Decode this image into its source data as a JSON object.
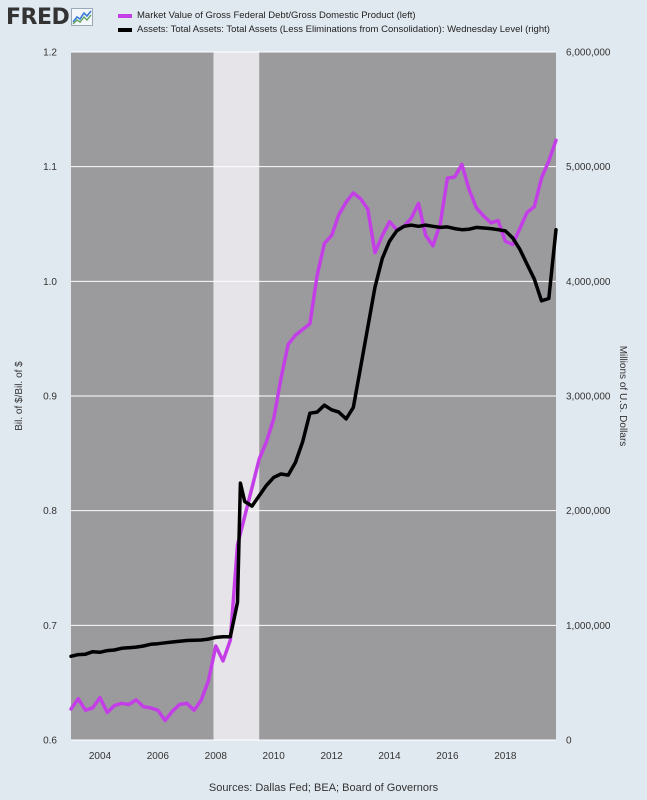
{
  "logo": {
    "text": "FRED"
  },
  "legend": [
    {
      "label": "Market Value of Gross Federal Debt/Gross Domestic Product (left)",
      "color": "#c43ee8"
    },
    {
      "label": "Assets: Total Assets: Total Assets (Less Eliminations from Consolidation): Wednesday Level (right)",
      "color": "#000000"
    }
  ],
  "sources": "Sources: Dallas Fed; BEA; Board of Governors",
  "chart_data": {
    "type": "line",
    "x_range": [
      2003.0,
      2019.75
    ],
    "x_ticks": [
      "2004",
      "2006",
      "2008",
      "2010",
      "2012",
      "2014",
      "2016",
      "2018"
    ],
    "x_tick_values": [
      2004,
      2006,
      2008,
      2010,
      2012,
      2014,
      2016,
      2018
    ],
    "left_axis": {
      "label": "Bil. of $/Bil. of $",
      "ylim": [
        0.6,
        1.2
      ],
      "ticks": [
        "0.6",
        "0.7",
        "0.8",
        "0.9",
        "1.0",
        "1.1",
        "1.2"
      ],
      "tick_values": [
        0.6,
        0.7,
        0.8,
        0.9,
        1.0,
        1.1,
        1.2
      ]
    },
    "right_axis": {
      "label": "Millions of U.S. Dollars",
      "ylim": [
        0,
        6000000
      ],
      "ticks": [
        "0",
        "1,000,000",
        "2,000,000",
        "3,000,000",
        "4,000,000",
        "5,000,000",
        "6,000,000"
      ],
      "tick_values": [
        0,
        1000000,
        2000000,
        3000000,
        4000000,
        5000000,
        6000000
      ]
    },
    "recession": {
      "start": 2007.92,
      "end": 2009.5
    },
    "grid": true,
    "series": [
      {
        "name": "Market Value of Gross Federal Debt/Gross Domestic Product (left)",
        "axis": "left",
        "color": "#c43ee8",
        "x": [
          2003.0,
          2003.25,
          2003.5,
          2003.75,
          2004.0,
          2004.25,
          2004.5,
          2004.75,
          2005.0,
          2005.25,
          2005.5,
          2005.75,
          2006.0,
          2006.25,
          2006.5,
          2006.75,
          2007.0,
          2007.25,
          2007.5,
          2007.75,
          2008.0,
          2008.25,
          2008.5,
          2008.75,
          2009.0,
          2009.25,
          2009.5,
          2009.75,
          2010.0,
          2010.25,
          2010.5,
          2010.75,
          2011.0,
          2011.25,
          2011.5,
          2011.75,
          2012.0,
          2012.25,
          2012.5,
          2012.75,
          2013.0,
          2013.25,
          2013.5,
          2013.75,
          2014.0,
          2014.25,
          2014.5,
          2014.75,
          2015.0,
          2015.25,
          2015.5,
          2015.75,
          2016.0,
          2016.25,
          2016.5,
          2016.75,
          2017.0,
          2017.25,
          2017.5,
          2017.75,
          2018.0,
          2018.25,
          2018.5,
          2018.75,
          2019.0,
          2019.25,
          2019.5,
          2019.75
        ],
        "values": [
          0.627,
          0.636,
          0.626,
          0.628,
          0.637,
          0.624,
          0.63,
          0.632,
          0.631,
          0.635,
          0.629,
          0.628,
          0.626,
          0.617,
          0.625,
          0.631,
          0.632,
          0.626,
          0.635,
          0.652,
          0.682,
          0.669,
          0.687,
          0.77,
          0.795,
          0.82,
          0.845,
          0.86,
          0.88,
          0.915,
          0.945,
          0.953,
          0.958,
          0.963,
          1.005,
          1.033,
          1.04,
          1.058,
          1.069,
          1.077,
          1.072,
          1.063,
          1.025,
          1.04,
          1.052,
          1.045,
          1.048,
          1.055,
          1.068,
          1.04,
          1.031,
          1.05,
          1.09,
          1.091,
          1.102,
          1.08,
          1.064,
          1.057,
          1.051,
          1.053,
          1.035,
          1.032,
          1.046,
          1.06,
          1.065,
          1.09,
          1.105,
          1.123
        ]
      },
      {
        "name": "Assets: Total Assets: Total Assets (Less Eliminations from Consolidation): Wednesday Level (right)",
        "axis": "right",
        "color": "#000000",
        "x": [
          2003.0,
          2003.25,
          2003.5,
          2003.75,
          2004.0,
          2004.25,
          2004.5,
          2004.75,
          2005.0,
          2005.25,
          2005.5,
          2005.75,
          2006.0,
          2006.25,
          2006.5,
          2006.75,
          2007.0,
          2007.25,
          2007.5,
          2007.75,
          2008.0,
          2008.25,
          2008.5,
          2008.75,
          2008.85,
          2009.0,
          2009.25,
          2009.5,
          2009.75,
          2010.0,
          2010.25,
          2010.5,
          2010.75,
          2011.0,
          2011.25,
          2011.5,
          2011.75,
          2012.0,
          2012.25,
          2012.5,
          2012.75,
          2013.0,
          2013.25,
          2013.5,
          2013.75,
          2014.0,
          2014.25,
          2014.5,
          2014.75,
          2015.0,
          2015.25,
          2015.5,
          2015.75,
          2016.0,
          2016.25,
          2016.5,
          2016.75,
          2017.0,
          2017.25,
          2017.5,
          2017.75,
          2018.0,
          2018.25,
          2018.5,
          2018.75,
          2019.0,
          2019.25,
          2019.5,
          2019.75
        ],
        "values": [
          730000,
          745000,
          748000,
          770000,
          765000,
          780000,
          785000,
          800000,
          805000,
          810000,
          820000,
          835000,
          840000,
          848000,
          855000,
          862000,
          868000,
          870000,
          872000,
          880000,
          895000,
          900000,
          900000,
          1200000,
          2240000,
          2080000,
          2040000,
          2130000,
          2220000,
          2290000,
          2320000,
          2310000,
          2420000,
          2600000,
          2850000,
          2860000,
          2920000,
          2880000,
          2860000,
          2800000,
          2900000,
          3250000,
          3600000,
          3950000,
          4200000,
          4350000,
          4440000,
          4480000,
          4490000,
          4480000,
          4490000,
          4480000,
          4470000,
          4475000,
          4460000,
          4450000,
          4455000,
          4470000,
          4465000,
          4460000,
          4450000,
          4440000,
          4380000,
          4280000,
          4150000,
          4020000,
          3830000,
          3850000,
          4450000
        ]
      }
    ]
  }
}
